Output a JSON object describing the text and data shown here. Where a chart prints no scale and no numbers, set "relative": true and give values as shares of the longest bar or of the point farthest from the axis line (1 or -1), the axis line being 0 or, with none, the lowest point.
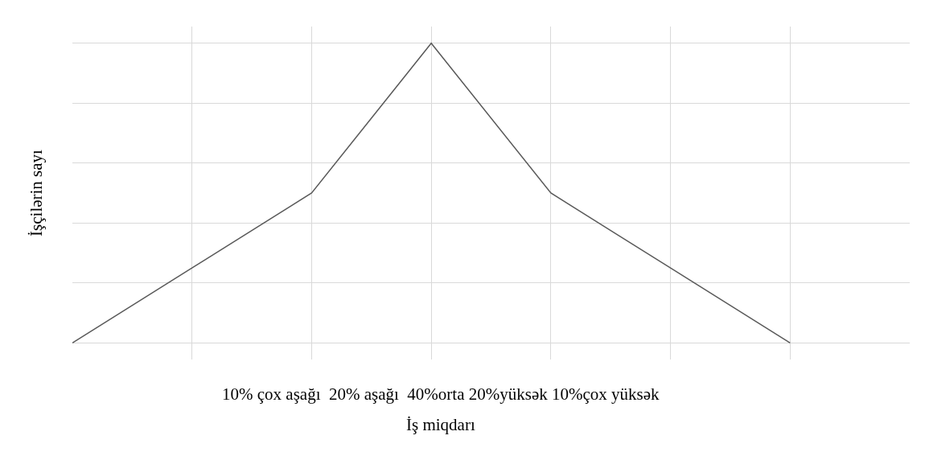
{
  "chart_data": {
    "type": "line",
    "relative": true,
    "categories": [
      null,
      null,
      null,
      null,
      null,
      null,
      null
    ],
    "series": [
      {
        "color": "#595959",
        "values": [
          0,
          0.25,
          0.5,
          1,
          0.5,
          0.25,
          0
        ]
      }
    ],
    "xlabel": "İş miqdarı",
    "ylabel": "İşçilərin sayı",
    "annotations": [
      "10% çox aşağı  20% aşağı  40%orta 20%yüksək 10%çox yüksək"
    ],
    "grid": true,
    "marker": "none",
    "line_style": "solid"
  }
}
